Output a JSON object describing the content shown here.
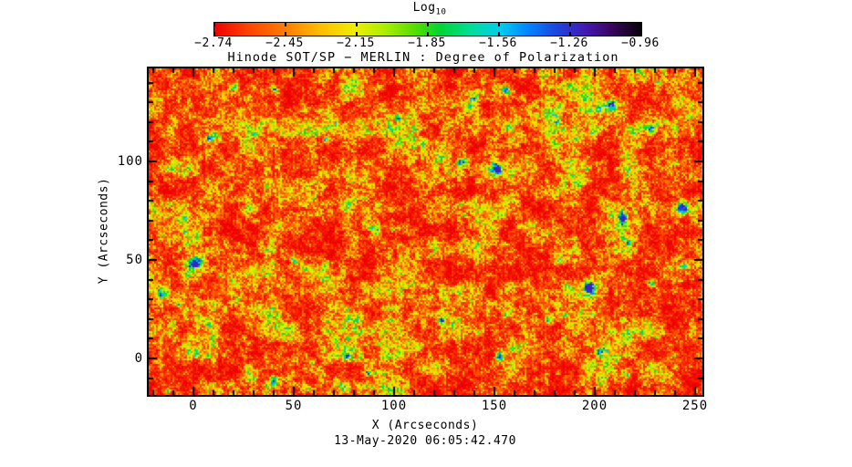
{
  "colorbar": {
    "title_main": "Log",
    "title_sub": "10",
    "tick_labels": [
      "−2.74",
      "−2.45",
      "−2.15",
      "−1.85",
      "−1.56",
      "−1.26",
      "−0.96"
    ]
  },
  "plot": {
    "title": "Hinode SOT/SP − MERLIN : Degree of Polarization",
    "xlabel": "X (Arcseconds)",
    "ylabel": "Y (Arcseconds)",
    "timestamp": "13-May-2020 06:05:42.470",
    "x_tick_labels": [
      "0",
      "50",
      "100",
      "150",
      "200",
      "250"
    ],
    "y_tick_labels": [
      "0",
      "50",
      "100"
    ]
  },
  "chart_data": {
    "type": "heatmap",
    "title": "Hinode SOT/SP − MERLIN : Degree of Polarization",
    "colorbar_label": "Log10",
    "colorbar_tick_values": [
      -2.74,
      -2.45,
      -2.15,
      -1.85,
      -1.56,
      -1.26,
      -0.96
    ],
    "value_scale": "log10 of degree of polarization",
    "value_range": [
      -2.74,
      -0.96
    ],
    "xlabel": "X (Arcseconds)",
    "ylabel": "Y (Arcseconds)",
    "xlim": [
      -22,
      253
    ],
    "ylim": [
      -18,
      147
    ],
    "x_tick_values": [
      0,
      50,
      100,
      150,
      200,
      250
    ],
    "y_tick_values": [
      0,
      50,
      100
    ],
    "minor_tick_step": 10,
    "ticks_inward": true,
    "grid": false,
    "timestamp": "13-May-2020 06:05:42.470",
    "colormap_stops": [
      {
        "t": 0.0,
        "color": "#ee0000"
      },
      {
        "t": 0.08,
        "color": "#ff4400"
      },
      {
        "t": 0.17,
        "color": "#ff7f00"
      },
      {
        "t": 0.25,
        "color": "#ffbf00"
      },
      {
        "t": 0.33,
        "color": "#eeee00"
      },
      {
        "t": 0.4,
        "color": "#aaee00"
      },
      {
        "t": 0.47,
        "color": "#55dd00"
      },
      {
        "t": 0.53,
        "color": "#00d435"
      },
      {
        "t": 0.6,
        "color": "#00dd99"
      },
      {
        "t": 0.67,
        "color": "#00ccee"
      },
      {
        "t": 0.73,
        "color": "#0088ff"
      },
      {
        "t": 0.8,
        "color": "#1c46e0"
      },
      {
        "t": 0.87,
        "color": "#4418b0"
      },
      {
        "t": 0.93,
        "color": "#38065e"
      },
      {
        "t": 1.0,
        "color": "#0a0208"
      }
    ],
    "distribution_note": "Field is dominated by low polarization (log10 ~ -2.7 to -2.3, red/orange) with a mottled yellow network (~ -2.2) and sparse green speckles (~ -1.9); rare cyan/blue blobs reach -1.6 to -1.2. Purple/black end of scale essentially absent.",
    "features": [
      [
        0.082,
        0.592,
        4.5,
        0.45
      ],
      [
        0.259,
        0.581,
        4.0,
        0.48
      ],
      [
        0.226,
        0.064,
        3.0,
        0.46
      ],
      [
        0.448,
        0.148,
        3.0,
        0.44
      ],
      [
        0.629,
        0.307,
        3.0,
        0.46
      ],
      [
        0.642,
        0.061,
        2.8,
        0.42
      ],
      [
        0.852,
        0.455,
        4.0,
        0.4
      ],
      [
        0.959,
        0.419,
        4.5,
        0.42
      ],
      [
        0.964,
        0.601,
        3.5,
        0.4
      ],
      [
        0.72,
        0.768,
        3.0,
        0.4
      ],
      [
        0.358,
        0.88,
        2.8,
        0.44
      ],
      [
        0.629,
        0.88,
        3.0,
        0.42
      ],
      [
        0.02,
        0.684,
        3.5,
        0.38
      ],
      [
        0.11,
        0.209,
        3.0,
        0.38
      ],
      [
        0.44,
        0.489,
        2.5,
        0.36
      ]
    ]
  }
}
